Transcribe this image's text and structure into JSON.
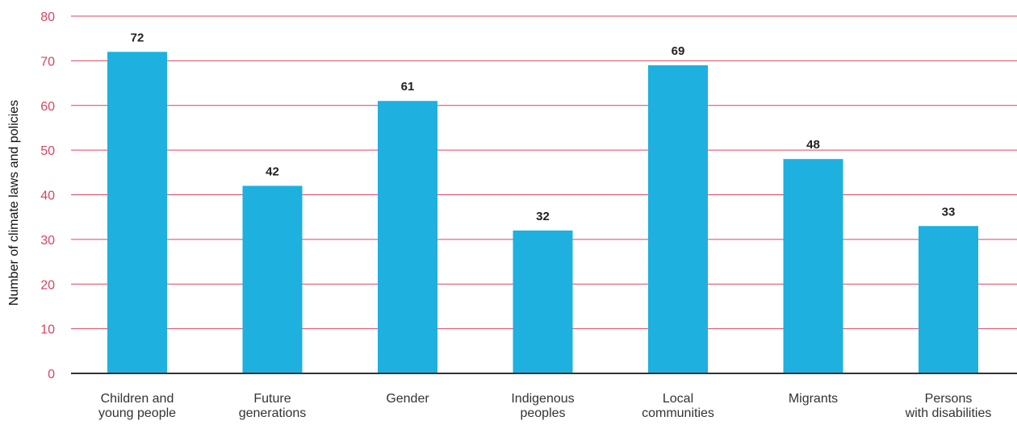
{
  "chart_data": {
    "type": "bar",
    "title": "",
    "xlabel": "",
    "ylabel": "Number of climate laws and policies",
    "ylim": [
      0,
      80
    ],
    "yticks": [
      0,
      10,
      20,
      30,
      40,
      50,
      60,
      70,
      80
    ],
    "grid": true,
    "legend": "none",
    "categories": [
      [
        "Children and",
        "young people"
      ],
      [
        "Future",
        "generations"
      ],
      [
        "Gender"
      ],
      [
        "Indigenous",
        "peoples"
      ],
      [
        "Local",
        "communities"
      ],
      [
        "Migrants"
      ],
      [
        "Persons",
        "with disabilities"
      ]
    ],
    "values": [
      72,
      42,
      61,
      32,
      69,
      48,
      33
    ],
    "colors": {
      "bar": "#1EB0DF",
      "grid": "#D9445F",
      "ytick": "#D9445F",
      "axis": "#333333"
    }
  }
}
